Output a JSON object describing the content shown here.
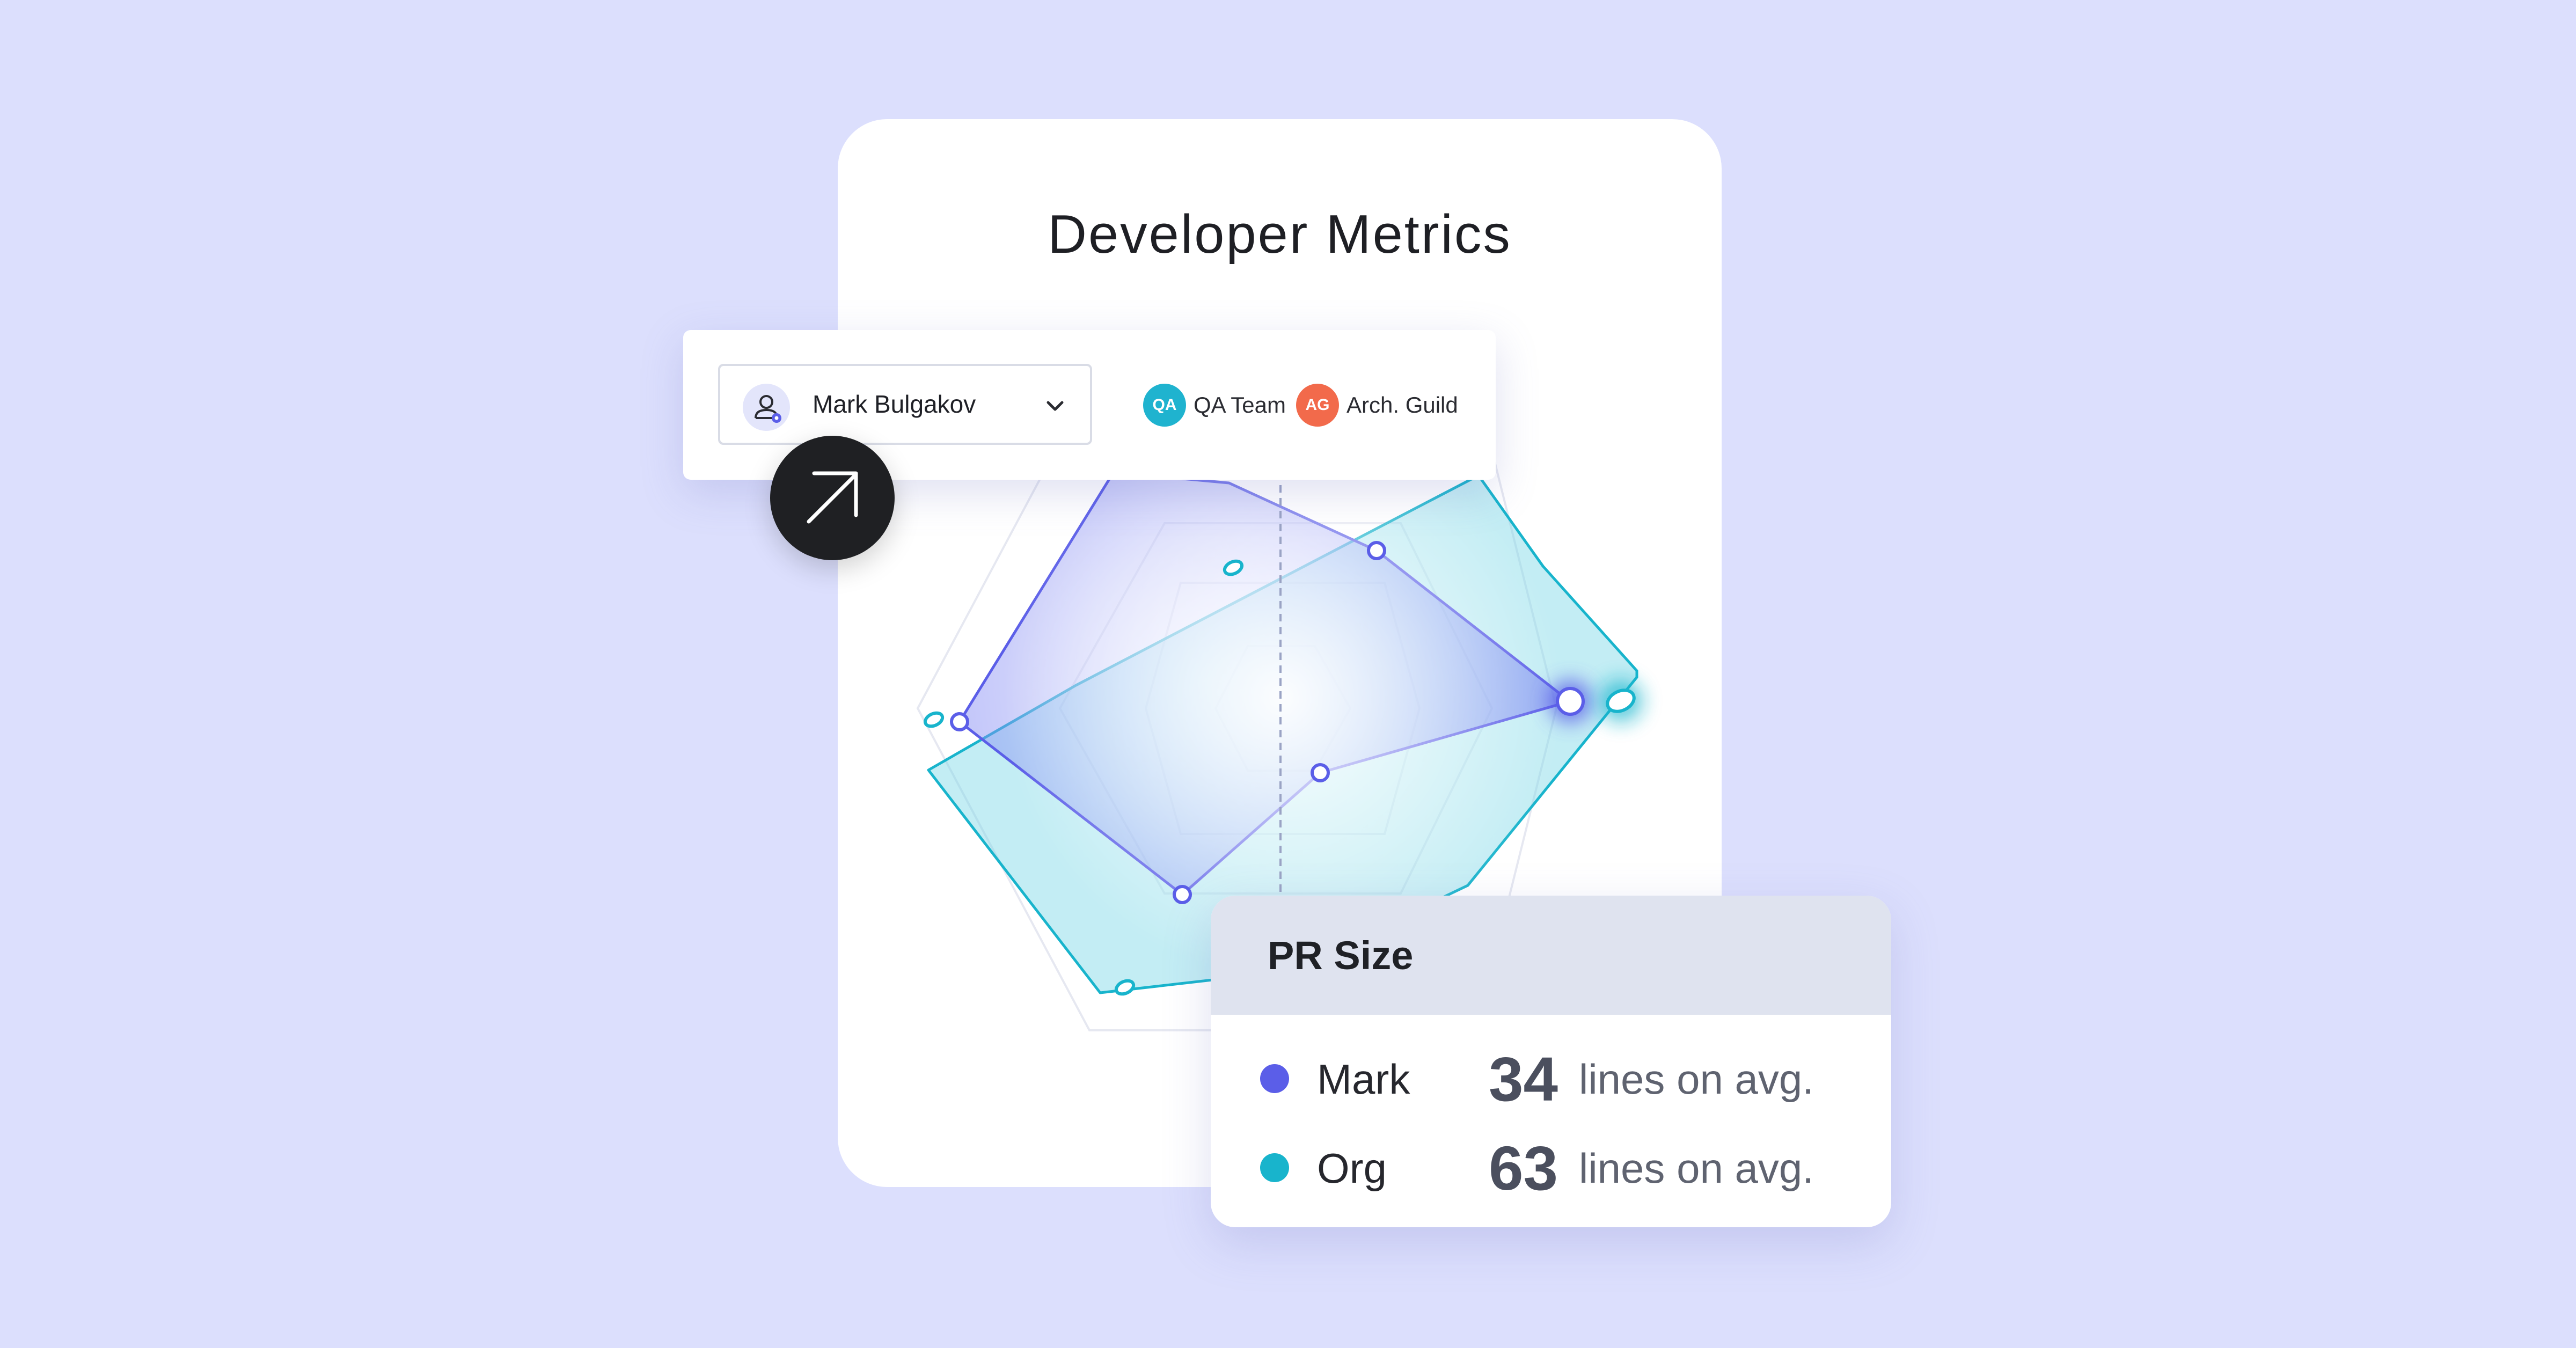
{
  "card": {
    "title": "Developer Metrics"
  },
  "selector": {
    "user_name": "Mark Bulgakov",
    "chips": [
      {
        "abbr": "QA",
        "label": "QA Team",
        "color": "#1fb3cf"
      },
      {
        "abbr": "AG",
        "label": "Arch. Guild",
        "color": "#f26a4b"
      }
    ]
  },
  "radar": {
    "series": [
      {
        "name": "Mark",
        "color": "#5b5ee8"
      },
      {
        "name": "Org",
        "color": "#18b4cc"
      }
    ]
  },
  "tooltip": {
    "title": "PR Size",
    "rows": [
      {
        "name": "Mark",
        "value": "34",
        "unit": "lines on avg.",
        "color": "#5b5ee8"
      },
      {
        "name": "Org",
        "value": "63",
        "unit": "lines on avg.",
        "color": "#18b4cc"
      }
    ]
  },
  "icons": {
    "user": "user-settings-icon",
    "chevron": "chevron-down-icon",
    "fab": "arrow-up-right-icon"
  }
}
